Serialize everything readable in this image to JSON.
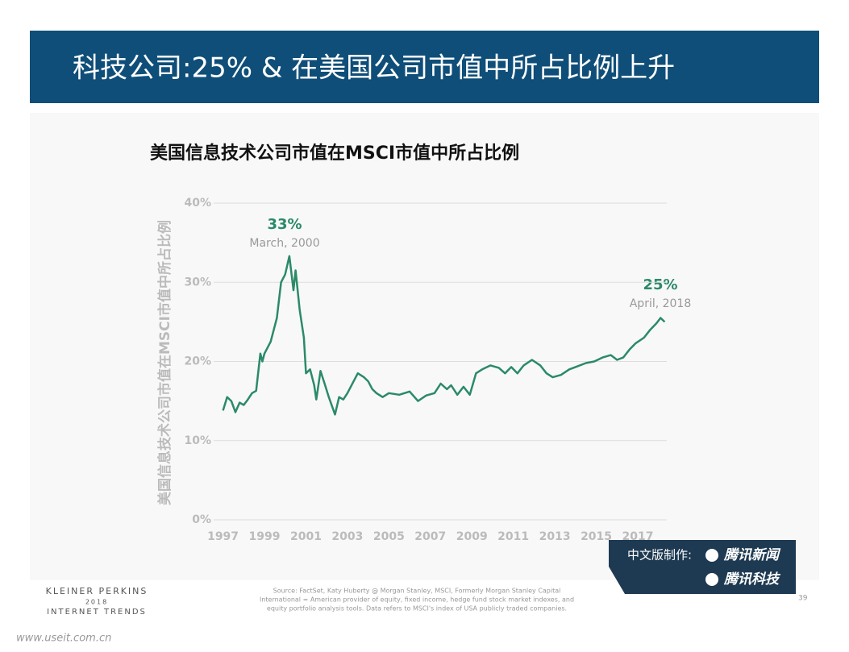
{
  "header": {
    "title": "科技公司:25% & 在美国公司市值中所占比例上升"
  },
  "chart_data": {
    "type": "line",
    "title": "美国信息技术公司市值在MSCI市值中所占比例",
    "ylabel": "美国信息技术公司市值在MSCI市值中所占比例",
    "color": "#2b8a68",
    "grid": true,
    "x": [
      1997.0,
      1997.2,
      1997.4,
      1997.6,
      1997.8,
      1998.0,
      1998.2,
      1998.4,
      1998.6,
      1998.8,
      1998.9,
      1999.0,
      1999.3,
      1999.6,
      1999.8,
      2000.0,
      2000.2,
      2000.4,
      2000.5,
      2000.7,
      2000.9,
      2001.0,
      2001.2,
      2001.4,
      2001.5,
      2001.7,
      2001.9,
      2002.1,
      2002.4,
      2002.6,
      2002.8,
      2003.0,
      2003.3,
      2003.5,
      2003.8,
      2004.0,
      2004.2,
      2004.4,
      2004.7,
      2005.0,
      2005.5,
      2006.0,
      2006.4,
      2006.8,
      2007.2,
      2007.5,
      2007.8,
      2008.0,
      2008.3,
      2008.6,
      2008.9,
      2009.2,
      2009.5,
      2009.9,
      2010.3,
      2010.6,
      2010.9,
      2011.2,
      2011.5,
      2011.9,
      2012.3,
      2012.6,
      2012.9,
      2013.3,
      2013.7,
      2014.0,
      2014.5,
      2014.9,
      2015.3,
      2015.7,
      2016.0,
      2016.3,
      2016.6,
      2016.9,
      2017.3,
      2017.6,
      2017.9,
      2018.1,
      2018.3
    ],
    "values": [
      13.8,
      15.5,
      15.0,
      13.6,
      14.8,
      14.5,
      15.2,
      16.0,
      16.3,
      21.0,
      20.0,
      21.0,
      22.5,
      25.5,
      30.0,
      31.0,
      33.3,
      29.0,
      31.5,
      26.5,
      23.0,
      18.5,
      19.0,
      17.0,
      15.2,
      18.8,
      17.2,
      15.5,
      13.3,
      15.5,
      15.2,
      16.0,
      17.5,
      18.5,
      18.0,
      17.5,
      16.5,
      16.0,
      15.5,
      16.0,
      15.8,
      16.2,
      15.0,
      15.7,
      16.0,
      17.2,
      16.5,
      17.0,
      15.8,
      16.8,
      15.8,
      18.5,
      19.0,
      19.5,
      19.2,
      18.5,
      19.3,
      18.5,
      19.5,
      20.2,
      19.5,
      18.5,
      18.0,
      18.3,
      19.0,
      19.3,
      19.8,
      20.0,
      20.5,
      20.8,
      20.2,
      20.5,
      21.5,
      22.3,
      23.0,
      24.0,
      24.8,
      25.5,
      25.0
    ],
    "xlim": [
      1996.55,
      2018.4
    ],
    "xticks": [
      1997,
      1999,
      2001,
      2003,
      2005,
      2007,
      2009,
      2011,
      2013,
      2015,
      2017
    ],
    "ylim": [
      0,
      40
    ],
    "yticks": [
      {
        "value": 0,
        "label": "0%"
      },
      {
        "value": 10,
        "label": "10%"
      },
      {
        "value": 20,
        "label": "20%"
      },
      {
        "value": 30,
        "label": "30%"
      },
      {
        "value": 40,
        "label": "40%"
      }
    ],
    "annotations": [
      {
        "label": "33%",
        "date": "March, 2000"
      },
      {
        "label": "25%",
        "date": "April, 2018"
      }
    ]
  },
  "footer": {
    "brand": [
      "KLEINER PERKINS",
      "2018",
      "INTERNET TRENDS"
    ],
    "source": [
      "Source: FactSet, Katy Huberty @ Morgan Stanley, MSCI, Formerly Morgan Stanley Capital",
      "International = American provider of equity, fixed income, hedge fund stock market indexes, and",
      "equity portfolio analysis tools. Data refers to MSCI's index of USA publicly traded companies."
    ],
    "page": "39",
    "badge": [
      "中文版制作:",
      "腾讯新闻",
      "腾讯科技"
    ],
    "site": "www.useit.com.cn"
  }
}
